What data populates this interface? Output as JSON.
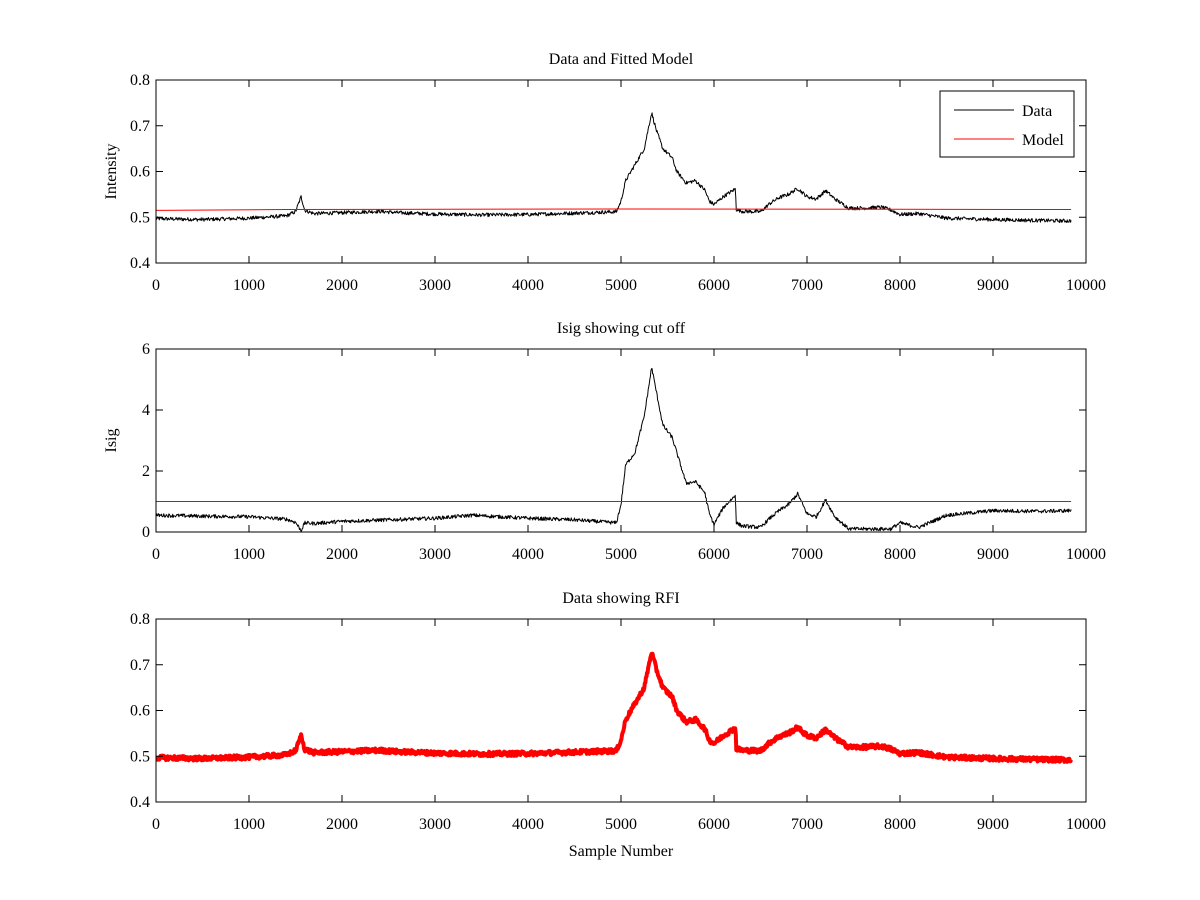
{
  "chart_data": [
    {
      "type": "line",
      "title": "Data and Fitted Model",
      "xlabel": "",
      "ylabel": "Intensity",
      "xlim": [
        0,
        10000
      ],
      "ylim": [
        0.4,
        0.8
      ],
      "xticks": [
        "0",
        "1000",
        "2000",
        "3000",
        "4000",
        "5000",
        "6000",
        "7000",
        "8000",
        "9000",
        "10000"
      ],
      "yticks": [
        "0.4",
        "0.5",
        "0.6",
        "0.7",
        "0.8"
      ],
      "grid": false,
      "legend": "top-right",
      "series": [
        {
          "name": "Data",
          "color": "#000000",
          "x": [
            0,
            500,
            1000,
            1400,
            1500,
            1560,
            1600,
            1700,
            2000,
            2400,
            2600,
            3000,
            3500,
            4000,
            4500,
            4950,
            5000,
            5050,
            5150,
            5250,
            5300,
            5330,
            5380,
            5450,
            5550,
            5600,
            5700,
            5800,
            5900,
            5950,
            6000,
            6100,
            6230,
            6240,
            6300,
            6500,
            6600,
            6700,
            6800,
            6900,
            7000,
            7100,
            7200,
            7300,
            7450,
            7600,
            7800,
            7900,
            8000,
            8200,
            8500,
            9000,
            9500,
            9840
          ],
          "y": [
            0.497,
            0.495,
            0.498,
            0.503,
            0.512,
            0.545,
            0.515,
            0.508,
            0.51,
            0.513,
            0.51,
            0.507,
            0.505,
            0.506,
            0.509,
            0.512,
            0.535,
            0.58,
            0.615,
            0.65,
            0.7,
            0.728,
            0.69,
            0.65,
            0.63,
            0.6,
            0.575,
            0.58,
            0.56,
            0.535,
            0.528,
            0.545,
            0.562,
            0.517,
            0.513,
            0.512,
            0.53,
            0.543,
            0.55,
            0.563,
            0.545,
            0.54,
            0.558,
            0.54,
            0.52,
            0.52,
            0.522,
            0.516,
            0.506,
            0.508,
            0.498,
            0.495,
            0.493,
            0.492
          ]
        },
        {
          "name": "Model",
          "color": "#ff0000",
          "x": [
            0,
            1400,
            5000,
            9840
          ],
          "y": [
            0.515,
            0.517,
            0.518,
            0.517
          ]
        }
      ]
    },
    {
      "type": "line",
      "title": "Isig showing cut off",
      "xlabel": "",
      "ylabel": "Isig",
      "xlim": [
        0,
        10000
      ],
      "ylim": [
        0,
        6
      ],
      "xticks": [
        "0",
        "1000",
        "2000",
        "3000",
        "4000",
        "5000",
        "6000",
        "7000",
        "8000",
        "9000",
        "10000"
      ],
      "yticks": [
        "0",
        "2",
        "4",
        "6"
      ],
      "grid": false,
      "series": [
        {
          "color": "#000000",
          "x": [
            0,
            500,
            1000,
            1400,
            1500,
            1560,
            1600,
            1700,
            2000,
            2500,
            3000,
            3400,
            4000,
            4500,
            4950,
            5000,
            5050,
            5150,
            5250,
            5300,
            5330,
            5380,
            5450,
            5550,
            5600,
            5700,
            5800,
            5900,
            5950,
            6000,
            6100,
            6230,
            6240,
            6300,
            6500,
            6600,
            6700,
            6800,
            6900,
            7000,
            7100,
            7200,
            7300,
            7450,
            7600,
            7800,
            7900,
            8000,
            8200,
            8500,
            9000,
            9500,
            9840
          ],
          "y": [
            0.55,
            0.52,
            0.5,
            0.42,
            0.32,
            0.05,
            0.3,
            0.28,
            0.35,
            0.4,
            0.45,
            0.55,
            0.45,
            0.4,
            0.3,
            0.9,
            2.2,
            2.6,
            3.8,
            4.8,
            5.4,
            4.6,
            3.5,
            3.1,
            2.6,
            1.6,
            1.65,
            1.3,
            0.6,
            0.25,
            0.8,
            1.2,
            0.3,
            0.2,
            0.15,
            0.45,
            0.7,
            0.9,
            1.25,
            0.6,
            0.5,
            1.05,
            0.5,
            0.1,
            0.1,
            0.1,
            0.1,
            0.3,
            0.15,
            0.55,
            0.7,
            0.68,
            0.7
          ]
        },
        {
          "color": "#ff0000",
          "x": [
            0,
            9840
          ],
          "y": [
            1,
            1
          ]
        }
      ]
    },
    {
      "type": "line",
      "title": "Data showing RFI",
      "xlabel": "Sample Number",
      "ylabel": "",
      "xlim": [
        0,
        10000
      ],
      "ylim": [
        0.4,
        0.8
      ],
      "xticks": [
        "0",
        "1000",
        "2000",
        "3000",
        "4000",
        "5000",
        "6000",
        "7000",
        "8000",
        "9000",
        "10000"
      ],
      "yticks": [
        "0.4",
        "0.5",
        "0.6",
        "0.7",
        "0.8"
      ],
      "grid": false,
      "series": [
        {
          "color": "#ff0000",
          "x": [
            0,
            500,
            1000,
            1400,
            1500,
            1560,
            1600,
            1700,
            2000,
            2400,
            2600,
            3000,
            3500,
            4000,
            4500,
            4950,
            5000,
            5050,
            5150,
            5250,
            5300,
            5330,
            5380,
            5450,
            5550,
            5600,
            5700,
            5800,
            5900,
            5950,
            6000,
            6100,
            6230,
            6240,
            6300,
            6500,
            6600,
            6700,
            6800,
            6900,
            7000,
            7100,
            7200,
            7300,
            7450,
            7600,
            7800,
            7900,
            8000,
            8200,
            8500,
            9000,
            9500,
            9840
          ],
          "y": [
            0.497,
            0.495,
            0.498,
            0.503,
            0.512,
            0.545,
            0.515,
            0.508,
            0.51,
            0.513,
            0.51,
            0.507,
            0.505,
            0.506,
            0.509,
            0.512,
            0.535,
            0.58,
            0.615,
            0.65,
            0.7,
            0.728,
            0.69,
            0.65,
            0.63,
            0.6,
            0.575,
            0.58,
            0.56,
            0.535,
            0.528,
            0.545,
            0.562,
            0.517,
            0.513,
            0.512,
            0.53,
            0.543,
            0.55,
            0.563,
            0.545,
            0.54,
            0.558,
            0.54,
            0.52,
            0.52,
            0.522,
            0.516,
            0.506,
            0.508,
            0.498,
            0.495,
            0.493,
            0.492
          ]
        }
      ]
    }
  ]
}
